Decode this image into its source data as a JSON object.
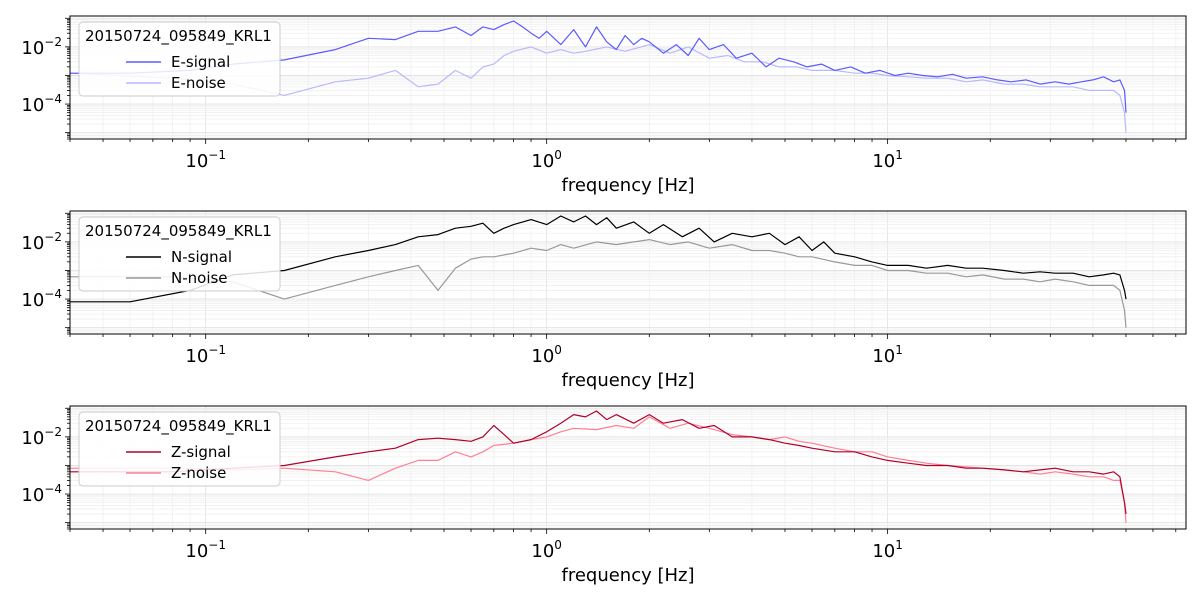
{
  "chart_data": [
    {
      "type": "line",
      "xlabel": "frequency [Hz]",
      "xscale": "log",
      "yscale": "log",
      "xlim": [
        0.04,
        75
      ],
      "ylim": [
        6e-06,
        0.12
      ],
      "x_ticks": [
        {
          "base": "10",
          "exp": "−1",
          "value": 0.1
        },
        {
          "base": "10",
          "exp": "0",
          "value": 1
        },
        {
          "base": "10",
          "exp": "1",
          "value": 10
        }
      ],
      "y_ticks": [
        {
          "base": "10",
          "exp": "−2",
          "value": 0.01
        },
        {
          "base": "10",
          "exp": "−4",
          "value": 0.0001
        }
      ],
      "grid": true,
      "legend_title": "20150724_095849_KRL1",
      "legend_position": "upper-left",
      "series": [
        {
          "name": "E-signal",
          "color": "#5b5bff",
          "x": [
            0.04,
            0.06,
            0.09,
            0.12,
            0.17,
            0.24,
            0.3,
            0.36,
            0.42,
            0.48,
            0.54,
            0.6,
            0.65,
            0.7,
            0.75,
            0.8,
            0.85,
            0.9,
            0.95,
            1.0,
            1.1,
            1.2,
            1.3,
            1.4,
            1.5,
            1.6,
            1.7,
            1.8,
            1.9,
            2.0,
            2.2,
            2.4,
            2.6,
            2.8,
            3.0,
            3.3,
            3.6,
            4.0,
            4.4,
            4.8,
            5.3,
            5.8,
            6.4,
            7.0,
            7.8,
            8.6,
            9.5,
            10.5,
            11.5,
            12.7,
            14.0,
            15.5,
            17.0,
            19.0,
            21.0,
            23.0,
            25.5,
            28.0,
            31.0,
            34.0,
            37.0,
            40.0,
            43.0,
            46.0,
            48.0,
            49.5,
            50.0
          ],
          "y": [
            0.0012,
            0.0012,
            0.0015,
            0.0025,
            0.0035,
            0.008,
            0.02,
            0.018,
            0.035,
            0.035,
            0.05,
            0.025,
            0.05,
            0.04,
            0.06,
            0.08,
            0.05,
            0.03,
            0.02,
            0.035,
            0.012,
            0.04,
            0.01,
            0.05,
            0.015,
            0.008,
            0.025,
            0.012,
            0.02,
            0.015,
            0.006,
            0.012,
            0.005,
            0.02,
            0.008,
            0.012,
            0.004,
            0.006,
            0.002,
            0.004,
            0.003,
            0.002,
            0.0025,
            0.0015,
            0.002,
            0.0012,
            0.0015,
            0.001,
            0.0012,
            0.001,
            0.0009,
            0.0011,
            0.0008,
            0.0009,
            0.0007,
            0.0006,
            0.0007,
            0.0005,
            0.0006,
            0.0005,
            0.0006,
            0.0007,
            0.0009,
            0.0006,
            0.0007,
            0.0003,
            5e-05
          ]
        },
        {
          "name": "E-noise",
          "color": "#b8b8ff",
          "x": [
            0.04,
            0.08,
            0.12,
            0.17,
            0.24,
            0.3,
            0.36,
            0.42,
            0.48,
            0.54,
            0.6,
            0.65,
            0.7,
            0.75,
            0.8,
            0.9,
            1.0,
            1.1,
            1.2,
            1.3,
            1.5,
            1.7,
            2.0,
            2.3,
            2.6,
            3.0,
            3.4,
            3.8,
            4.3,
            4.8,
            5.4,
            6.0,
            7.0,
            8.0,
            9.0,
            10.0,
            11.5,
            13.0,
            15.0,
            17.0,
            19.0,
            22.0,
            25.0,
            28.0,
            31.0,
            35.0,
            39.0,
            43.0,
            46.0,
            48.0,
            49.5,
            50.0
          ],
          "y": [
            0.0012,
            0.0008,
            0.0005,
            0.0002,
            0.0006,
            0.0008,
            0.0015,
            0.0004,
            0.0005,
            0.0015,
            0.0008,
            0.002,
            0.0025,
            0.005,
            0.007,
            0.01,
            0.006,
            0.008,
            0.006,
            0.007,
            0.01,
            0.007,
            0.012,
            0.006,
            0.01,
            0.004,
            0.005,
            0.003,
            0.003,
            0.002,
            0.002,
            0.0015,
            0.0015,
            0.0012,
            0.0012,
            0.001,
            0.0009,
            0.0008,
            0.0008,
            0.0006,
            0.0007,
            0.0005,
            0.0005,
            0.0004,
            0.0004,
            0.0004,
            0.0003,
            0.0003,
            0.0003,
            0.0002,
            5e-05,
            1e-05
          ]
        },
        {
          "name": "N-signal",
          "color": "#000000",
          "x": [
            0.04,
            0.06,
            0.09,
            0.12,
            0.17,
            0.24,
            0.3,
            0.36,
            0.42,
            0.48,
            0.54,
            0.6,
            0.65,
            0.7,
            0.75,
            0.8,
            0.9,
            1.0,
            1.1,
            1.2,
            1.3,
            1.4,
            1.5,
            1.6,
            1.8,
            2.0,
            2.2,
            2.5,
            2.8,
            3.1,
            3.5,
            4.0,
            4.5,
            5.0,
            5.5,
            6.0,
            6.5,
            7.0,
            8.0,
            9.0,
            10.0,
            11.5,
            13.0,
            15.0,
            17.0,
            19.0,
            22.0,
            25.0,
            28.0,
            31.0,
            35.0,
            39.0,
            43.0,
            46.0,
            48.0,
            49.5,
            50.0
          ],
          "y": [
            8e-05,
            8e-05,
            0.0002,
            0.0007,
            0.001,
            0.003,
            0.005,
            0.008,
            0.015,
            0.018,
            0.03,
            0.035,
            0.045,
            0.02,
            0.03,
            0.04,
            0.06,
            0.04,
            0.08,
            0.05,
            0.08,
            0.04,
            0.07,
            0.03,
            0.05,
            0.02,
            0.04,
            0.015,
            0.03,
            0.01,
            0.02,
            0.015,
            0.02,
            0.008,
            0.015,
            0.005,
            0.01,
            0.004,
            0.003,
            0.002,
            0.0015,
            0.0015,
            0.0012,
            0.0015,
            0.0012,
            0.0012,
            0.001,
            0.0008,
            0.0009,
            0.0008,
            0.0008,
            0.0006,
            0.0007,
            0.0008,
            0.0007,
            0.0002,
            0.0001
          ]
        },
        {
          "name": "N-noise",
          "color": "#999999",
          "x": [
            0.04,
            0.08,
            0.12,
            0.17,
            0.24,
            0.3,
            0.36,
            0.42,
            0.48,
            0.54,
            0.6,
            0.65,
            0.7,
            0.8,
            0.9,
            1.0,
            1.1,
            1.2,
            1.4,
            1.6,
            1.8,
            2.0,
            2.3,
            2.6,
            3.0,
            3.5,
            4.0,
            4.5,
            5.0,
            5.5,
            6.0,
            7.0,
            8.0,
            9.0,
            10.0,
            11.5,
            13.0,
            15.0,
            17.0,
            19.0,
            22.0,
            25.0,
            28.0,
            31.0,
            35.0,
            39.0,
            43.0,
            46.0,
            48.0,
            49.5,
            50.0
          ],
          "y": [
            0.0006,
            0.0006,
            0.0004,
            0.0001,
            0.0003,
            0.0006,
            0.001,
            0.0015,
            0.0002,
            0.0012,
            0.0025,
            0.003,
            0.003,
            0.004,
            0.006,
            0.005,
            0.008,
            0.006,
            0.01,
            0.008,
            0.01,
            0.012,
            0.008,
            0.01,
            0.006,
            0.008,
            0.005,
            0.005,
            0.004,
            0.003,
            0.003,
            0.002,
            0.0015,
            0.0015,
            0.001,
            0.001,
            0.0008,
            0.0008,
            0.0006,
            0.0007,
            0.0005,
            0.0005,
            0.0004,
            0.0005,
            0.0004,
            0.0003,
            0.0003,
            0.0003,
            0.0002,
            4e-05,
            1e-05
          ]
        },
        {
          "name": "Z-signal",
          "color": "#b0002a",
          "x": [
            0.04,
            0.08,
            0.12,
            0.17,
            0.24,
            0.3,
            0.36,
            0.42,
            0.48,
            0.54,
            0.6,
            0.65,
            0.7,
            0.75,
            0.8,
            0.9,
            1.0,
            1.1,
            1.2,
            1.3,
            1.4,
            1.5,
            1.6,
            1.8,
            2.0,
            2.2,
            2.5,
            2.8,
            3.1,
            3.5,
            4.0,
            4.5,
            5.0,
            5.5,
            6.0,
            7.0,
            8.0,
            9.0,
            10.0,
            11.5,
            13.0,
            15.0,
            17.0,
            19.0,
            22.0,
            25.0,
            28.0,
            31.0,
            35.0,
            39.0,
            43.0,
            46.0,
            48.0,
            49.5,
            50.0
          ],
          "y": [
            0.0006,
            0.0006,
            0.0008,
            0.001,
            0.002,
            0.003,
            0.004,
            0.008,
            0.009,
            0.008,
            0.007,
            0.01,
            0.025,
            0.012,
            0.006,
            0.008,
            0.015,
            0.03,
            0.06,
            0.05,
            0.08,
            0.04,
            0.06,
            0.03,
            0.06,
            0.03,
            0.04,
            0.02,
            0.025,
            0.01,
            0.01,
            0.008,
            0.006,
            0.005,
            0.004,
            0.003,
            0.003,
            0.002,
            0.0015,
            0.0012,
            0.001,
            0.001,
            0.0008,
            0.0008,
            0.0007,
            0.0006,
            0.0007,
            0.0008,
            0.0006,
            0.0006,
            0.0005,
            0.0006,
            0.0004,
            5e-05,
            2e-05
          ]
        },
        {
          "name": "Z-noise",
          "color": "#ff8095",
          "x": [
            0.04,
            0.08,
            0.12,
            0.17,
            0.24,
            0.3,
            0.36,
            0.42,
            0.48,
            0.54,
            0.6,
            0.65,
            0.7,
            0.8,
            0.9,
            1.0,
            1.1,
            1.2,
            1.4,
            1.6,
            1.8,
            2.0,
            2.3,
            2.6,
            3.0,
            3.5,
            4.0,
            4.5,
            5.0,
            5.5,
            6.0,
            7.0,
            8.0,
            9.0,
            10.0,
            11.5,
            13.0,
            15.0,
            17.0,
            19.0,
            22.0,
            25.0,
            28.0,
            31.0,
            35.0,
            39.0,
            43.0,
            46.0,
            48.0,
            49.5,
            50.0
          ],
          "y": [
            0.0008,
            0.0008,
            0.0007,
            0.0008,
            0.0006,
            0.0003,
            0.0008,
            0.0015,
            0.0015,
            0.003,
            0.002,
            0.003,
            0.005,
            0.006,
            0.008,
            0.01,
            0.015,
            0.02,
            0.018,
            0.025,
            0.02,
            0.05,
            0.02,
            0.03,
            0.02,
            0.012,
            0.01,
            0.008,
            0.01,
            0.007,
            0.006,
            0.004,
            0.003,
            0.003,
            0.002,
            0.0015,
            0.0012,
            0.001,
            0.0009,
            0.0008,
            0.0007,
            0.0006,
            0.0005,
            0.0006,
            0.0005,
            0.0004,
            0.0004,
            0.0003,
            0.0003,
            5e-05,
            1e-05
          ]
        }
      ],
      "panels": [
        {
          "series": [
            "E-signal",
            "E-noise"
          ],
          "legend_labels": [
            "E-signal",
            "E-noise"
          ]
        },
        {
          "series": [
            "N-signal",
            "N-noise"
          ],
          "legend_labels": [
            "N-signal",
            "N-noise"
          ]
        },
        {
          "series": [
            "Z-signal",
            "Z-noise"
          ],
          "legend_labels": [
            "Z-signal",
            "Z-noise"
          ]
        }
      ]
    }
  ]
}
